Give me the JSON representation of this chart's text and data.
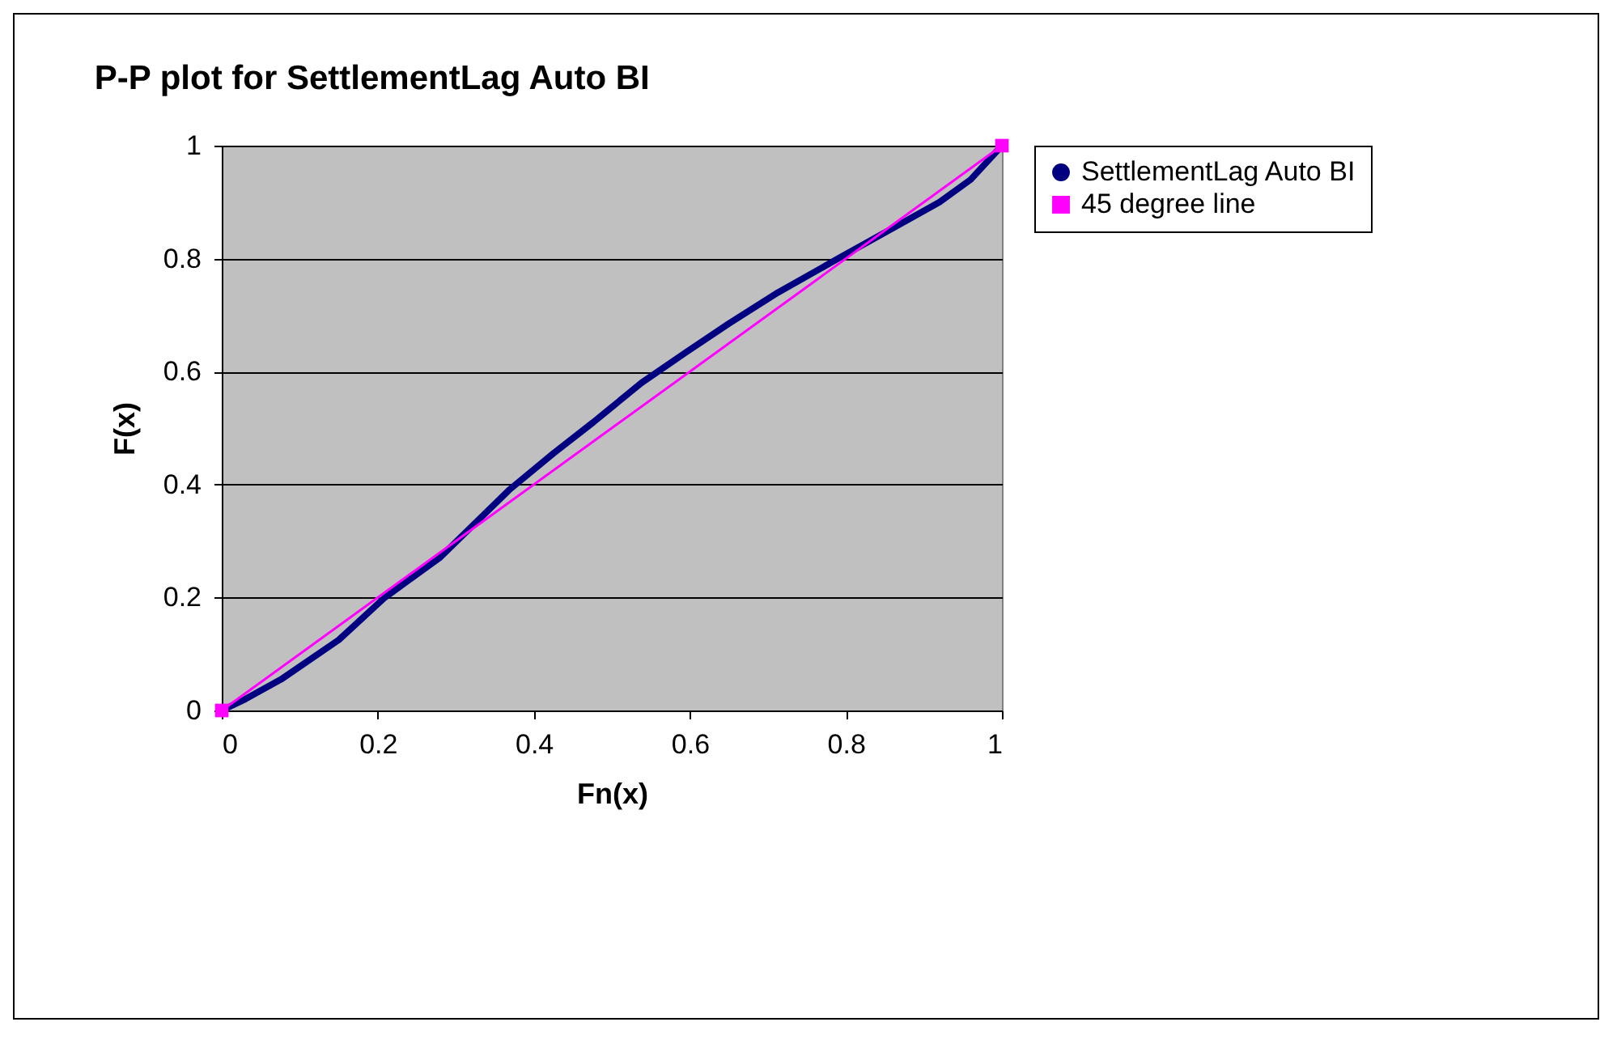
{
  "chart_data": {
    "type": "line",
    "title": "P-P plot for SettlementLag Auto BI",
    "xlabel": "Fn(x)",
    "ylabel": "F(x)",
    "series": [
      {
        "name": "SettlementLag Auto BI",
        "color": "#000080",
        "marker": "circle",
        "x": [
          0,
          0.03,
          0.076,
          0.15,
          0.209,
          0.279,
          0.368,
          0.425,
          0.476,
          0.538,
          0.596,
          0.65,
          0.713,
          0.79,
          0.868,
          0.92,
          0.96,
          1
        ],
        "values": [
          0,
          0.02,
          0.055,
          0.125,
          0.2,
          0.27,
          0.39,
          0.455,
          0.51,
          0.58,
          0.635,
          0.685,
          0.74,
          0.8,
          0.86,
          0.9,
          0.94,
          1
        ]
      },
      {
        "name": "45 degree line",
        "color": "#ff00ff",
        "marker": "square",
        "x": [
          0,
          1
        ],
        "values": [
          0,
          1
        ]
      }
    ],
    "xlim": [
      0,
      1
    ],
    "ylim": [
      0,
      1
    ],
    "xticks": [
      0,
      0.2,
      0.4,
      0.6,
      0.8,
      1
    ],
    "yticks": [
      0,
      0.2,
      0.4,
      0.6,
      0.8,
      1
    ],
    "grid": "y",
    "legend": "right"
  }
}
